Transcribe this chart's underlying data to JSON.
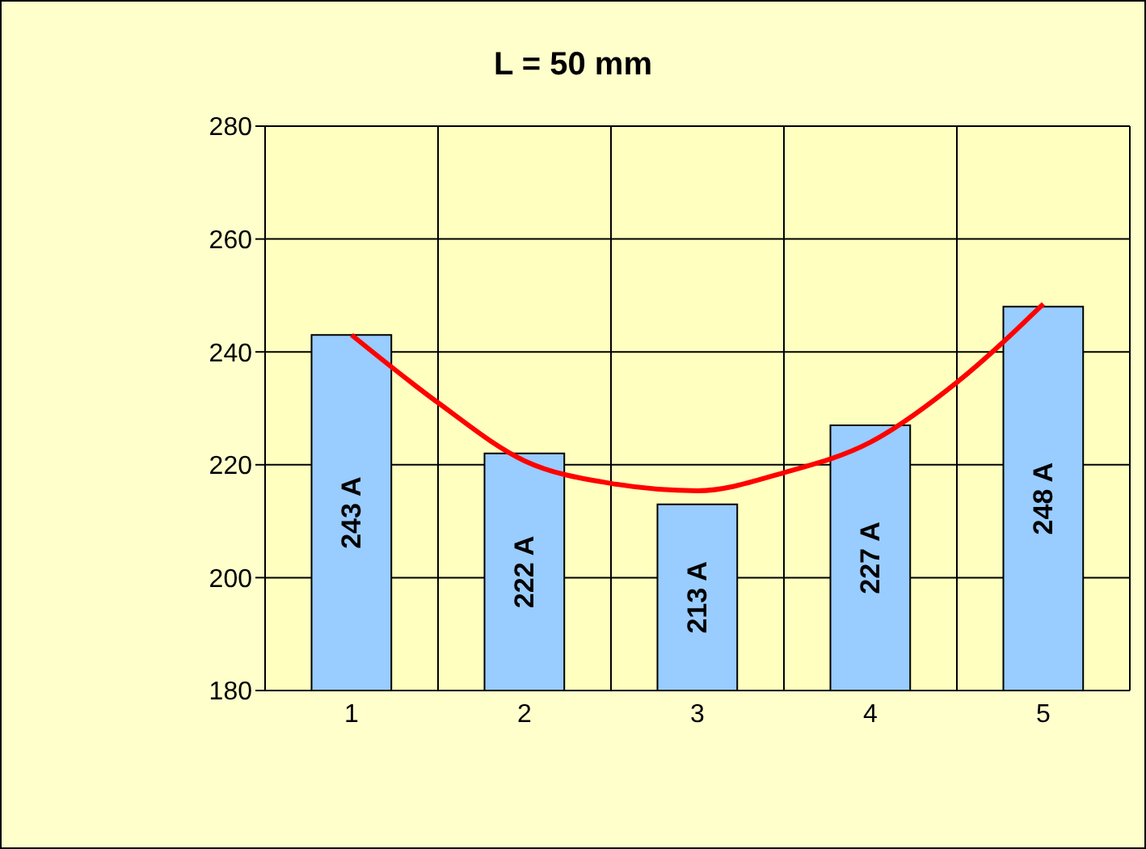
{
  "chart_data": {
    "type": "bar",
    "title": "L = 50 mm",
    "x": [
      1,
      2,
      3,
      4,
      5
    ],
    "xlim": [
      0.5,
      5.5
    ],
    "xticks": [
      1,
      2,
      3,
      4,
      5
    ],
    "ylim": [
      180,
      280
    ],
    "yticks": [
      180,
      200,
      220,
      240,
      260,
      280
    ],
    "grid": true,
    "series": [
      {
        "color": "#99ccff",
        "values": [
          243,
          222,
          213,
          227,
          248
        ],
        "value_labels": [
          "243 A",
          "222 A",
          "213 A",
          "227 A",
          "248 A"
        ]
      },
      {
        "type": "line",
        "color": "#ff0000",
        "marker": "none",
        "x": [
          1,
          1.5,
          2,
          2.5,
          3,
          3.5,
          4,
          4.5,
          5
        ],
        "values": [
          243,
          231,
          220.7,
          216.7,
          215.4,
          218.6,
          224,
          234.6,
          248.5
        ]
      }
    ]
  }
}
